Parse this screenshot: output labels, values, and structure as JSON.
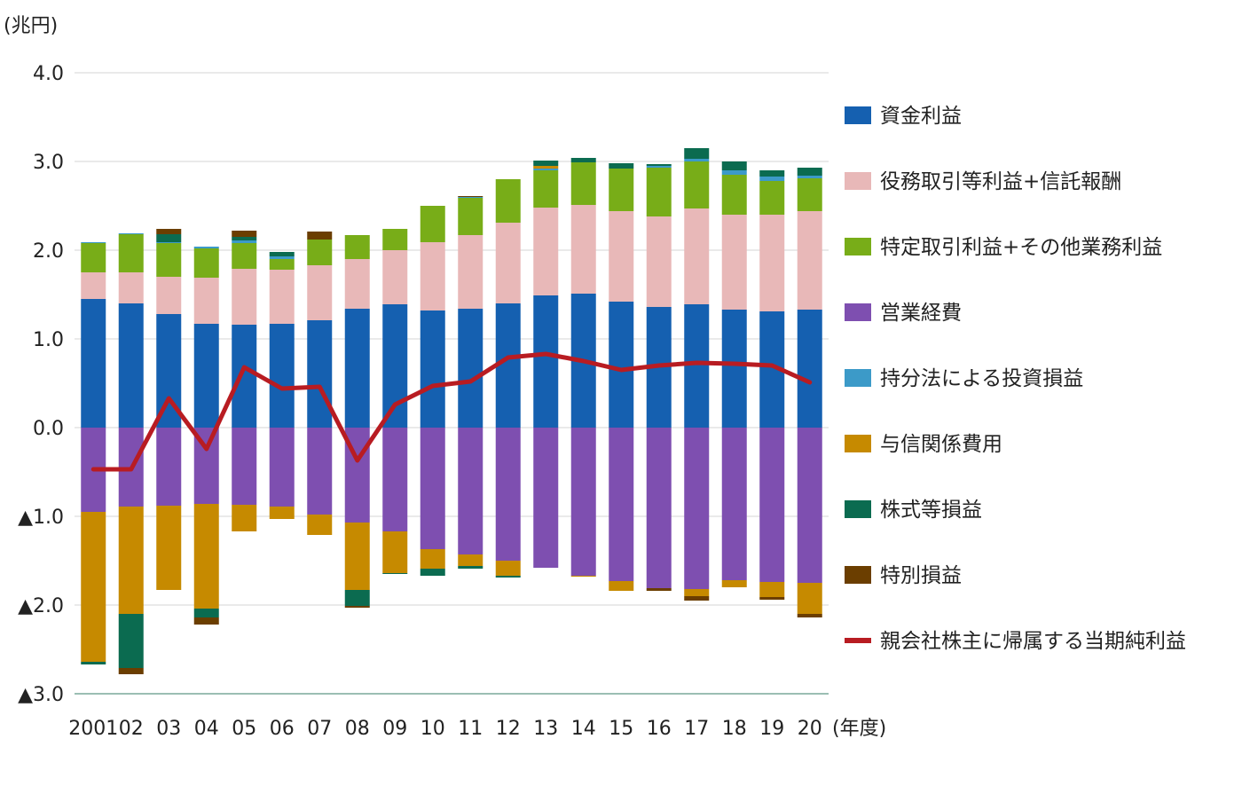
{
  "chart_data": {
    "type": "bar",
    "stacked": true,
    "y_unit_label": "(兆円)",
    "x_unit_label": "(年度)",
    "categories": [
      "2001",
      "02",
      "03",
      "04",
      "05",
      "06",
      "07",
      "08",
      "09",
      "10",
      "11",
      "12",
      "13",
      "14",
      "15",
      "16",
      "17",
      "18",
      "19",
      "20"
    ],
    "ylim": [
      -3.0,
      4.0
    ],
    "y_ticks": [
      {
        "value": 4.0,
        "label": "4.0"
      },
      {
        "value": 3.0,
        "label": "3.0"
      },
      {
        "value": 2.0,
        "label": "2.0"
      },
      {
        "value": 1.0,
        "label": "1.0"
      },
      {
        "value": 0.0,
        "label": "0.0"
      },
      {
        "value": -1.0,
        "label": "▲1.0"
      },
      {
        "value": -2.0,
        "label": "▲2.0"
      },
      {
        "value": -3.0,
        "label": "▲3.0"
      }
    ],
    "grid": true,
    "legend_position": "right",
    "series": [
      {
        "name": "資金利益",
        "kind": "bar",
        "color": "#1560b0",
        "values": [
          1.45,
          1.4,
          1.28,
          1.17,
          1.16,
          1.17,
          1.21,
          1.34,
          1.39,
          1.32,
          1.34,
          1.4,
          1.49,
          1.51,
          1.42,
          1.36,
          1.39,
          1.33,
          1.31,
          1.33
        ]
      },
      {
        "name": "役務取引等利益+信託報酬",
        "kind": "bar",
        "color": "#e8b8b8",
        "values": [
          0.3,
          0.35,
          0.42,
          0.52,
          0.63,
          0.61,
          0.62,
          0.56,
          0.61,
          0.77,
          0.83,
          0.91,
          0.99,
          1.0,
          1.02,
          1.02,
          1.08,
          1.07,
          1.09,
          1.11
        ]
      },
      {
        "name": "特定取引利益+その他業務利益",
        "kind": "bar",
        "color": "#78ad18",
        "values": [
          0.33,
          0.43,
          0.38,
          0.33,
          0.29,
          0.12,
          0.29,
          0.27,
          0.24,
          0.41,
          0.42,
          0.49,
          0.42,
          0.48,
          0.48,
          0.55,
          0.53,
          0.45,
          0.38,
          0.37
        ]
      },
      {
        "name": "営業経費",
        "kind": "bar",
        "color": "#7e4fb0",
        "values": [
          -0.95,
          -0.89,
          -0.88,
          -0.86,
          -0.87,
          -0.89,
          -0.98,
          -1.07,
          -1.17,
          -1.37,
          -1.43,
          -1.5,
          -1.58,
          -1.67,
          -1.73,
          -1.81,
          -1.82,
          -1.72,
          -1.74,
          -1.75
        ]
      },
      {
        "name": "持分法による投資損益",
        "kind": "bar",
        "color": "#3c9ac8",
        "values": [
          0.01,
          0.01,
          0.01,
          0.02,
          0.03,
          0.03,
          0.0,
          0.0,
          0.0,
          0.0,
          0.01,
          0.0,
          0.02,
          0.0,
          0.0,
          0.02,
          0.03,
          0.05,
          0.05,
          0.03
        ]
      },
      {
        "name": "与信関係費用",
        "kind": "bar",
        "color": "#c68a00",
        "values": [
          -1.69,
          -1.21,
          -0.95,
          -1.18,
          -0.3,
          -0.14,
          -0.23,
          -0.76,
          -0.47,
          -0.22,
          -0.13,
          -0.17,
          0.03,
          -0.01,
          -0.11,
          0.0,
          -0.08,
          -0.08,
          -0.17,
          -0.35
        ]
      },
      {
        "name": "株式等損益",
        "kind": "bar",
        "color": "#0b6b50",
        "values": [
          -0.03,
          -0.61,
          0.09,
          -0.1,
          0.04,
          0.05,
          0.0,
          -0.18,
          -0.01,
          -0.08,
          -0.03,
          -0.02,
          0.06,
          0.05,
          0.06,
          0.02,
          0.12,
          0.1,
          0.07,
          0.09
        ]
      },
      {
        "name": "特別損益",
        "kind": "bar",
        "color": "#6b3e00",
        "values": [
          0.0,
          -0.07,
          0.06,
          -0.08,
          0.07,
          0.0,
          0.09,
          -0.02,
          0.0,
          0.0,
          0.01,
          0.0,
          0.0,
          0.0,
          0.0,
          -0.03,
          -0.05,
          0.0,
          -0.03,
          -0.04
        ]
      },
      {
        "name": "親会社株主に帰属する当期純利益",
        "kind": "line",
        "color": "#b81c22",
        "values": [
          -0.47,
          -0.47,
          0.33,
          -0.24,
          0.68,
          0.44,
          0.46,
          -0.37,
          0.26,
          0.47,
          0.52,
          0.79,
          0.83,
          0.75,
          0.65,
          0.7,
          0.73,
          0.72,
          0.7,
          0.51
        ]
      }
    ]
  }
}
